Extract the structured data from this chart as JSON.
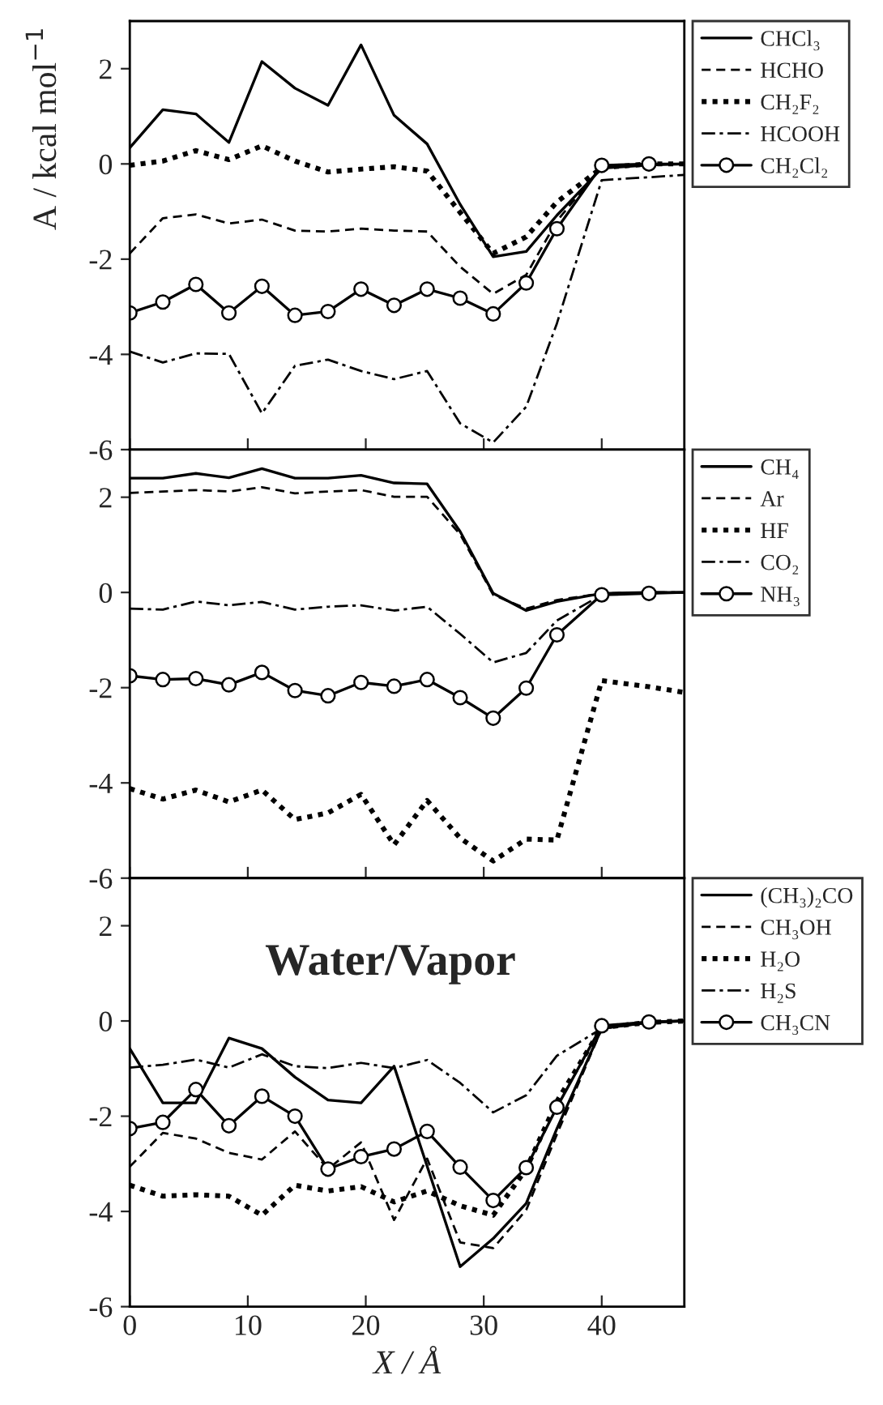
{
  "chart_data": [
    {
      "type": "line",
      "ylabel": "A / kcal mol$^{−1}$",
      "x": [
        0,
        2.8,
        5.6,
        8.4,
        11.2,
        14,
        16.8,
        19.6,
        22.4,
        25.2,
        28,
        30.8,
        33.6,
        36.2,
        40,
        44,
        47
      ],
      "xlim": [
        0,
        47
      ],
      "xticks": [
        0,
        10,
        20,
        30,
        40
      ],
      "ylim": [
        -6,
        3
      ],
      "yticks": [
        -6,
        -4,
        -2,
        0,
        2
      ],
      "tick_labels": "y",
      "legend": "right",
      "grid": false,
      "series": [
        {
          "name": "CHCl₃",
          "color": "#000000",
          "line_style": "solid",
          "marker": "none",
          "values": [
            0.34,
            1.14,
            1.05,
            0.45,
            2.15,
            1.59,
            1.23,
            2.5,
            1.02,
            0.42,
            -0.85,
            -1.95,
            -1.84,
            -1.08,
            -0.09,
            -0.02,
            0
          ]
        },
        {
          "name": "HCHO",
          "color": "#000000",
          "line_style": "dashed",
          "marker": "none",
          "values": [
            -1.88,
            -1.14,
            -1.06,
            -1.25,
            -1.17,
            -1.4,
            -1.42,
            -1.36,
            -1.4,
            -1.42,
            -2.16,
            -2.73,
            -2.33,
            -1.2,
            -0.05,
            0,
            0
          ]
        },
        {
          "name": "CH₂F₂",
          "color": "#000000",
          "line_style": "dotted",
          "marker": "none",
          "values": [
            -0.03,
            0.06,
            0.28,
            0.09,
            0.38,
            0.06,
            -0.17,
            -0.11,
            -0.06,
            -0.15,
            -1.02,
            -1.88,
            -1.53,
            -0.8,
            -0.08,
            0,
            0
          ]
        },
        {
          "name": "HCOOH",
          "color": "#000000",
          "line_style": "dashdot",
          "marker": "none",
          "values": [
            -3.94,
            -4.17,
            -3.98,
            -3.99,
            -5.24,
            -4.24,
            -4.11,
            -4.35,
            -4.52,
            -4.35,
            -5.45,
            -5.85,
            -5.1,
            -3.35,
            -0.34,
            -0.28,
            -0.23
          ]
        },
        {
          "name": "CH₂Cl₂",
          "color": "#000000",
          "line_style": "solid",
          "marker": "circle",
          "values": [
            -3.13,
            -2.9,
            -2.53,
            -3.13,
            -2.57,
            -3.18,
            -3.1,
            -2.63,
            -2.97,
            -2.63,
            -2.82,
            -3.15,
            -2.5,
            -1.36,
            -0.03,
            0,
            0
          ]
        }
      ]
    },
    {
      "type": "line",
      "x": [
        0,
        2.8,
        5.6,
        8.4,
        11.2,
        14,
        16.8,
        19.6,
        22.4,
        25.2,
        28,
        30.8,
        33.6,
        36.2,
        40,
        44,
        47
      ],
      "xlim": [
        0,
        47
      ],
      "xticks": [
        0,
        10,
        20,
        30,
        40
      ],
      "ylim": [
        -6,
        3
      ],
      "yticks": [
        -6,
        -4,
        -2,
        0,
        2
      ],
      "tick_labels": "y",
      "legend": "right",
      "grid": false,
      "series": [
        {
          "name": "CH₄",
          "color": "#000000",
          "line_style": "solid",
          "marker": "none",
          "values": [
            2.4,
            2.4,
            2.5,
            2.41,
            2.6,
            2.4,
            2.4,
            2.46,
            2.3,
            2.28,
            1.28,
            -0.02,
            -0.38,
            -0.19,
            -0.02,
            0,
            0
          ]
        },
        {
          "name": "Ar",
          "color": "#000000",
          "line_style": "dashed",
          "marker": "none",
          "values": [
            2.09,
            2.12,
            2.15,
            2.12,
            2.21,
            2.08,
            2.12,
            2.15,
            2.01,
            2.01,
            1.22,
            -0.05,
            -0.34,
            -0.16,
            -0.02,
            0,
            0
          ]
        },
        {
          "name": "HF",
          "color": "#000000",
          "line_style": "dotted",
          "marker": "none",
          "values": [
            -4.12,
            -4.34,
            -4.15,
            -4.4,
            -4.15,
            -4.77,
            -4.63,
            -4.24,
            -5.3,
            -4.37,
            -5.16,
            -5.64,
            -5.18,
            -5.2,
            -1.85,
            -1.98,
            -2.1
          ]
        },
        {
          "name": "CO₂",
          "color": "#000000",
          "line_style": "dashdot",
          "marker": "none",
          "values": [
            -0.34,
            -0.36,
            -0.19,
            -0.27,
            -0.2,
            -0.36,
            -0.3,
            -0.27,
            -0.38,
            -0.3,
            -0.87,
            -1.47,
            -1.27,
            -0.59,
            -0.05,
            0,
            0
          ]
        },
        {
          "name": "NH₃",
          "color": "#000000",
          "line_style": "solid",
          "marker": "circle",
          "values": [
            -1.75,
            -1.83,
            -1.81,
            -1.94,
            -1.68,
            -2.06,
            -2.17,
            -1.89,
            -1.97,
            -1.83,
            -2.21,
            -2.64,
            -2.01,
            -0.89,
            -0.05,
            -0.02,
            0
          ]
        }
      ]
    },
    {
      "type": "line",
      "xlabel": "X / Å",
      "annotations": [
        "Water/Vapor"
      ],
      "x": [
        0,
        2.8,
        5.6,
        8.4,
        11.2,
        14,
        16.8,
        19.6,
        22.4,
        25.2,
        28,
        30.8,
        33.6,
        36.2,
        40,
        44,
        47
      ],
      "xlim": [
        0,
        47
      ],
      "xticks": [
        0,
        10,
        20,
        30,
        40
      ],
      "ylim": [
        -6,
        3
      ],
      "yticks": [
        -6,
        -4,
        -2,
        0,
        2
      ],
      "legend": "right",
      "grid": false,
      "series": [
        {
          "name": "(CH₃)₂CO",
          "color": "#000000",
          "line_style": "solid",
          "marker": "none",
          "values": [
            -0.58,
            -1.72,
            -1.72,
            -0.36,
            -0.58,
            -1.18,
            -1.66,
            -1.72,
            -0.95,
            -3.05,
            -5.16,
            -4.57,
            -3.83,
            -2.26,
            -0.16,
            -0.03,
            0
          ]
        },
        {
          "name": "CH₃OH",
          "color": "#000000",
          "line_style": "dashed",
          "marker": "none",
          "values": [
            -3.06,
            -2.35,
            -2.47,
            -2.77,
            -2.91,
            -2.32,
            -3.11,
            -2.55,
            -4.18,
            -2.89,
            -4.65,
            -4.77,
            -3.97,
            -2.38,
            -0.16,
            -0.03,
            0
          ]
        },
        {
          "name": "H₂O",
          "color": "#000000",
          "line_style": "dotted",
          "marker": "none",
          "values": [
            -3.45,
            -3.68,
            -3.65,
            -3.68,
            -4.08,
            -3.45,
            -3.57,
            -3.48,
            -3.8,
            -3.57,
            -3.88,
            -4.08,
            -3.11,
            -1.69,
            -0.14,
            -0.03,
            0
          ]
        },
        {
          "name": "H₂S",
          "color": "#000000",
          "line_style": "dashdot",
          "marker": "none",
          "values": [
            -0.98,
            -0.92,
            -0.81,
            -0.98,
            -0.7,
            -0.95,
            -0.99,
            -0.88,
            -0.99,
            -0.82,
            -1.3,
            -1.92,
            -1.56,
            -0.73,
            -0.16,
            -0.03,
            0
          ]
        },
        {
          "name": "CH₃CN",
          "color": "#000000",
          "line_style": "solid",
          "marker": "circle",
          "values": [
            -2.26,
            -2.13,
            -1.44,
            -2.2,
            -1.58,
            -2.0,
            -3.11,
            -2.85,
            -2.69,
            -2.32,
            -3.07,
            -3.77,
            -3.08,
            -1.81,
            -0.1,
            -0.02,
            0
          ]
        }
      ]
    }
  ]
}
